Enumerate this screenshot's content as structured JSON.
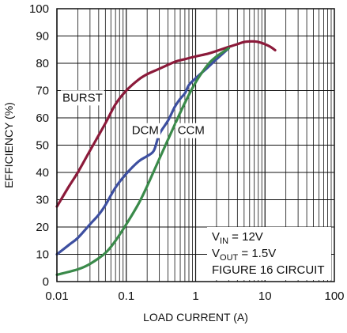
{
  "chart_data": {
    "type": "line",
    "title": "",
    "xlabel": "LOAD CURRENT (A)",
    "ylabel": "EFFICIENCY (%)",
    "x_scale": "log",
    "xlim": [
      0.01,
      100
    ],
    "ylim": [
      0,
      100
    ],
    "x_ticks": [
      0.01,
      0.1,
      1,
      10,
      100
    ],
    "x_tick_labels": [
      "0.01",
      "0.1",
      "1",
      "10",
      "100"
    ],
    "y_ticks": [
      0,
      10,
      20,
      30,
      40,
      50,
      60,
      70,
      80,
      90,
      100
    ],
    "y_tick_labels": [
      "0",
      "10",
      "20",
      "30",
      "40",
      "50",
      "60",
      "70",
      "80",
      "90",
      "100"
    ],
    "grid": true,
    "series": [
      {
        "name": "BURST",
        "color": "#8b1a3a",
        "x": [
          0.01,
          0.015,
          0.02,
          0.03,
          0.05,
          0.07,
          0.1,
          0.15,
          0.2,
          0.3,
          0.5,
          0.7,
          1,
          1.5,
          2,
          3,
          4,
          5,
          6,
          7,
          8,
          10,
          12,
          14
        ],
        "y": [
          27.5,
          35,
          40,
          48,
          58,
          65,
          70,
          74,
          76,
          78,
          80.5,
          81.5,
          82.5,
          83.5,
          84.5,
          86,
          87,
          87.8,
          88,
          88,
          87.8,
          87,
          86,
          84.8
        ]
      },
      {
        "name": "DCM",
        "color": "#3d4fa0",
        "x": [
          0.01,
          0.015,
          0.02,
          0.03,
          0.04,
          0.05,
          0.07,
          0.1,
          0.15,
          0.2,
          0.25,
          0.3,
          0.4,
          0.5,
          0.6,
          0.7,
          0.8,
          1,
          1.5,
          2,
          3
        ],
        "y": [
          10,
          13.5,
          16,
          21,
          24.5,
          28,
          34.5,
          39.5,
          44,
          46,
          48,
          54,
          59,
          64,
          67,
          69,
          72,
          74.5,
          78.5,
          81.5,
          85.5
        ]
      },
      {
        "name": "CCM",
        "color": "#3a8a4a",
        "x": [
          0.01,
          0.02,
          0.03,
          0.05,
          0.07,
          0.1,
          0.15,
          0.2,
          0.3,
          0.5,
          0.7,
          1,
          1.5,
          2,
          3
        ],
        "y": [
          2.5,
          4.5,
          6.5,
          10.5,
          15,
          21,
          28.5,
          35,
          45,
          57.5,
          65.5,
          73,
          79.5,
          82.5,
          85.5
        ]
      }
    ],
    "annotations": [
      {
        "text": "BURST",
        "x": 0.012,
        "y": 66
      },
      {
        "text": "DCM",
        "x": 0.12,
        "y": 54
      },
      {
        "text": "CCM",
        "x": 0.55,
        "y": 54
      }
    ],
    "conditions": [
      {
        "base": "V",
        "sub": "IN",
        "rest": " = 12V"
      },
      {
        "base": "V",
        "sub": "OUT",
        "rest": " = 1.5V"
      },
      {
        "base": "FIGURE 16 CIRCUIT",
        "sub": "",
        "rest": ""
      }
    ]
  }
}
